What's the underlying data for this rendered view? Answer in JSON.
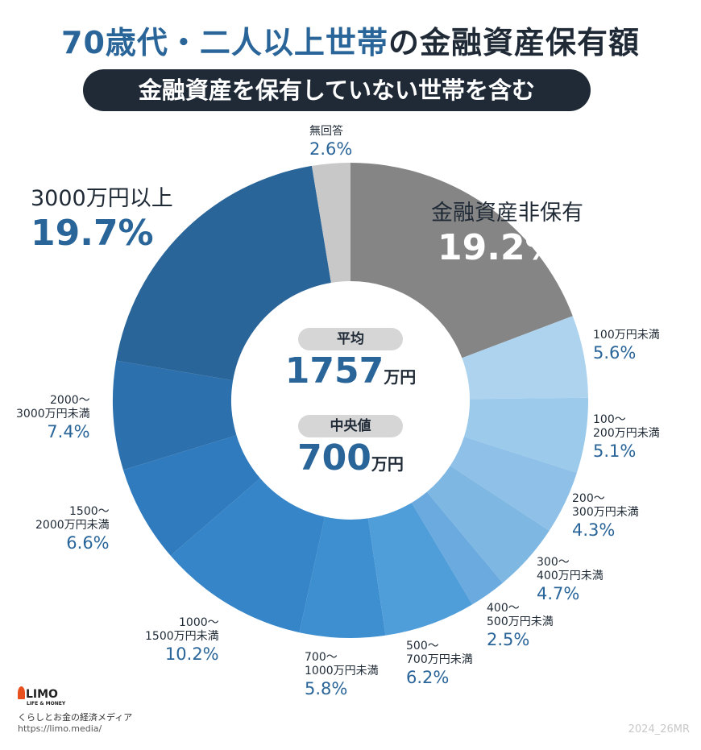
{
  "header": {
    "title_blue": "70歳代・二人以上世帯",
    "title_dark": "の金融資産保有額",
    "subtitle": "金融資産を保有していない世帯を含む"
  },
  "center": {
    "mean_label": "平均",
    "mean_value": "1757",
    "mean_unit": "万円",
    "median_label": "中央値",
    "median_value": "700",
    "median_unit": "万円"
  },
  "chart_data": {
    "type": "pie",
    "donut": true,
    "start": "12 o'clock",
    "direction": "clockwise",
    "categories": [
      "金融資産非保有",
      "100万円未満",
      "100〜200万円未満",
      "200〜300万円未満",
      "300〜400万円未満",
      "400〜500万円未満",
      "500〜700万円未満",
      "700〜1000万円未満",
      "1000〜1500万円未満",
      "1500〜2000万円未満",
      "2000〜3000万円未満",
      "3000万円以上",
      "無回答"
    ],
    "values": [
      19.2,
      5.6,
      5.1,
      4.3,
      4.7,
      2.5,
      6.2,
      5.8,
      10.2,
      6.6,
      7.4,
      19.7,
      2.6
    ],
    "colors": [
      "#858585",
      "#aed3ef",
      "#9ccaeb",
      "#8fc1e8",
      "#7fb7e3",
      "#6aaade",
      "#4f9dd9",
      "#3d8fd0",
      "#3585c8",
      "#2f7bbd",
      "#2c70ae",
      "#2a6599",
      "#c8c8c8"
    ],
    "labels": [
      {
        "l1": "金融資産非保有",
        "l2": "",
        "pct": "19.2%"
      },
      {
        "l1": "100万円未満",
        "l2": "",
        "pct": "5.6%"
      },
      {
        "l1": "100〜",
        "l2": "200万円未満",
        "pct": "5.1%"
      },
      {
        "l1": "200〜",
        "l2": "300万円未満",
        "pct": "4.3%"
      },
      {
        "l1": "300〜",
        "l2": "400万円未満",
        "pct": "4.7%"
      },
      {
        "l1": "400〜",
        "l2": "500万円未満",
        "pct": "2.5%"
      },
      {
        "l1": "500〜",
        "l2": "700万円未満",
        "pct": "6.2%"
      },
      {
        "l1": "700〜",
        "l2": "1000万円未満",
        "pct": "5.8%"
      },
      {
        "l1": "1000〜",
        "l2": "1500万円未満",
        "pct": "10.2%"
      },
      {
        "l1": "1500〜",
        "l2": "2000万円未満",
        "pct": "6.6%"
      },
      {
        "l1": "2000〜",
        "l2": "3000万円未満",
        "pct": "7.4%"
      },
      {
        "l1": "3000万円以上",
        "l2": "",
        "pct": "19.7%"
      },
      {
        "l1": "無回答",
        "l2": "",
        "pct": "2.6%"
      }
    ]
  },
  "footer": {
    "logo": "LIMO",
    "logo_sub": "LIFE & MONEY",
    "tagline": "くらしとお金の経済メディア",
    "url": "https://limo.media/",
    "credit": "2024_26MR"
  }
}
